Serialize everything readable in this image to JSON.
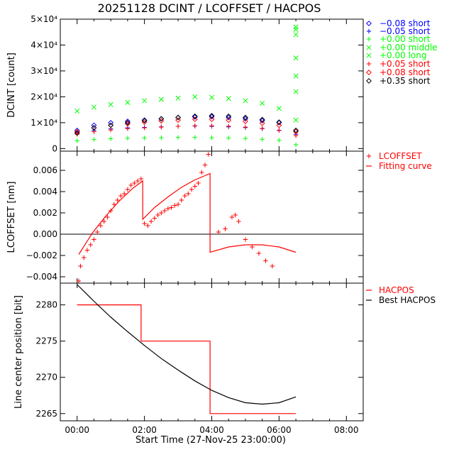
{
  "title": "20251128 DCINT / LCOFFSET / HACPOS",
  "xlabel": "Start Time (27-Nov-25 23:00:00)",
  "x_ticks": [
    "00:00",
    "02:00",
    "04:00",
    "06:00",
    "08:00"
  ],
  "colors": {
    "blue": "#0000ff",
    "green": "#00ff00",
    "red": "#ff0000",
    "black": "#000000"
  },
  "chart_data": [
    {
      "type": "scatter",
      "panel": "DCINT",
      "ylabel": "DCINT [count]",
      "xlim": [
        -0.5,
        8.5
      ],
      "ylim": [
        -1000,
        50000
      ],
      "y_ticks": [
        {
          "value": 0,
          "label": "0"
        },
        {
          "value": 10000,
          "label": "1×10⁴"
        },
        {
          "value": 20000,
          "label": "2×10⁴"
        },
        {
          "value": 30000,
          "label": "3×10⁴"
        },
        {
          "value": 40000,
          "label": "4×10⁴"
        },
        {
          "value": 50000,
          "label": "5×10⁴"
        }
      ],
      "legend_position": "right",
      "series": [
        {
          "name": "−0.08 short",
          "symbol": "diamond",
          "color": "#0000ff",
          "x": [
            0.0,
            0.5,
            1.0,
            1.5,
            2.0,
            2.5,
            3.0,
            3.5,
            4.0,
            4.5,
            5.0,
            5.5,
            6.0,
            6.5
          ],
          "y": [
            7000,
            9000,
            10000,
            10500,
            11000,
            11500,
            12000,
            12200,
            12300,
            12000,
            11500,
            10800,
            10000,
            7000
          ]
        },
        {
          "name": "−0.05 short",
          "symbol": "plus",
          "color": "#0000ff",
          "x": [
            0.0,
            0.5,
            1.0,
            1.5,
            2.0,
            2.5,
            3.0,
            3.5,
            4.0,
            4.5,
            5.0,
            5.5,
            6.0,
            6.5
          ],
          "y": [
            6000,
            7000,
            7600,
            8000,
            8200,
            8400,
            8600,
            8700,
            8600,
            8400,
            8100,
            7700,
            7100,
            5500
          ]
        },
        {
          "name": "+0.00 short",
          "symbol": "plus",
          "color": "#00ff00",
          "x": [
            0.0,
            0.5,
            1.0,
            1.5,
            2.0,
            2.5,
            3.0,
            3.5,
            4.0,
            4.5,
            5.0,
            5.5,
            6.0,
            6.5
          ],
          "y": [
            3000,
            3500,
            3800,
            4000,
            4100,
            4200,
            4300,
            4300,
            4200,
            4100,
            3900,
            3600,
            3200,
            1500
          ]
        },
        {
          "name": "+0.00 middle",
          "symbol": "x",
          "color": "#00ff00",
          "x": [
            6.5,
            6.5,
            6.5,
            6.5,
            6.5,
            6.5
          ],
          "y": [
            22000,
            28000,
            35000,
            44000,
            46000,
            47000
          ]
        },
        {
          "name": "+0.00 long",
          "symbol": "x",
          "color": "#00ff00",
          "x": [
            0.0,
            0.5,
            1.0,
            1.5,
            2.0,
            2.5,
            3.0,
            3.5,
            4.0,
            4.5,
            5.0,
            5.5,
            6.0,
            6.5
          ],
          "y": [
            14500,
            16000,
            17000,
            17800,
            18500,
            19000,
            19500,
            20000,
            19800,
            19300,
            18500,
            17500,
            15500,
            11000
          ]
        },
        {
          "name": "+0.05 short",
          "symbol": "plus",
          "color": "#ff0000",
          "x": [
            0.0,
            0.5,
            1.0,
            1.5,
            2.0,
            2.5,
            3.0,
            3.5,
            4.0,
            4.5,
            5.0,
            5.5,
            6.0,
            6.5
          ],
          "y": [
            5500,
            6500,
            7200,
            7700,
            8000,
            8300,
            8600,
            8800,
            8800,
            8600,
            8300,
            7800,
            7000,
            5000
          ]
        },
        {
          "name": "+0.08 short",
          "symbol": "diamond",
          "color": "#ff0000",
          "x": [
            0.0,
            0.5,
            1.0,
            1.5,
            2.0,
            2.5,
            3.0,
            3.5,
            4.0,
            4.5,
            5.0,
            5.5,
            6.0,
            6.5
          ],
          "y": [
            6500,
            8000,
            9000,
            9600,
            10200,
            10700,
            11000,
            11300,
            11300,
            11000,
            10500,
            9800,
            9000,
            6500
          ]
        },
        {
          "name": "+0.35 short",
          "symbol": "diamond",
          "color": "#000000",
          "x": [
            0.0,
            0.5,
            1.0,
            1.5,
            2.0,
            2.5,
            3.0,
            3.5,
            4.0,
            4.5,
            5.0,
            5.5,
            6.0,
            6.5
          ],
          "y": [
            6000,
            8000,
            9000,
            10000,
            10800,
            11500,
            12000,
            12500,
            12700,
            12500,
            12000,
            11200,
            10200,
            7000
          ]
        }
      ]
    },
    {
      "type": "scatter",
      "panel": "LCOFFSET",
      "ylabel": "LCOFFSET [nm]",
      "xlim": [
        -0.5,
        8.5
      ],
      "ylim": [
        -0.0046,
        0.0078
      ],
      "y_ticks": [
        {
          "value": -0.004,
          "label": "−0.004"
        },
        {
          "value": -0.002,
          "label": "−0.002"
        },
        {
          "value": 0.0,
          "label": "0.000"
        },
        {
          "value": 0.002,
          "label": "0.002"
        },
        {
          "value": 0.004,
          "label": "0.004"
        },
        {
          "value": 0.006,
          "label": "0.006"
        }
      ],
      "zero_line": true,
      "legend_position": "right",
      "series": [
        {
          "name": "LCOFFSET",
          "symbol": "plus",
          "color": "#ff0000",
          "x": [
            0.05,
            0.1,
            0.2,
            0.3,
            0.4,
            0.5,
            0.6,
            0.7,
            0.8,
            0.9,
            1.0,
            1.1,
            1.2,
            1.3,
            1.4,
            1.5,
            1.6,
            1.7,
            1.8,
            1.9,
            2.0,
            2.1,
            2.2,
            2.3,
            2.4,
            2.5,
            2.6,
            2.7,
            2.8,
            2.9,
            3.0,
            3.1,
            3.2,
            3.3,
            3.4,
            3.5,
            3.6,
            3.7,
            3.8,
            3.9,
            4.2,
            4.4,
            4.6,
            4.7,
            4.8,
            5.0,
            5.2,
            5.4,
            5.6,
            5.8
          ],
          "y": [
            -0.0044,
            -0.003,
            -0.0022,
            -0.0015,
            -0.001,
            -0.0005,
            0.0002,
            0.0008,
            0.0012,
            0.0016,
            0.0022,
            0.0028,
            0.0032,
            0.0036,
            0.0038,
            0.0042,
            0.0046,
            0.0048,
            0.005,
            0.0052,
            0.001,
            0.0008,
            0.0012,
            0.0015,
            0.0018,
            0.002,
            0.0022,
            0.0024,
            0.0025,
            0.0027,
            0.0028,
            0.0032,
            0.0036,
            0.0038,
            0.0042,
            0.0045,
            0.0048,
            0.0058,
            0.0065,
            0.0075,
            0.0002,
            0.0005,
            0.0016,
            0.0018,
            0.0012,
            -0.0005,
            -0.0012,
            -0.0018,
            -0.0025,
            -0.003
          ]
        },
        {
          "name": "Fitting curve",
          "symbol": "line",
          "color": "#ff0000",
          "x": [
            0.05,
            0.45,
            0.85,
            1.25,
            1.65,
            1.95,
            1.95,
            2.3,
            2.7,
            3.1,
            3.5,
            3.95,
            3.95,
            4.5,
            5.0,
            5.5,
            6.0,
            6.5
          ],
          "y": [
            -0.0019,
            0.0001,
            0.0017,
            0.0031,
            0.0043,
            0.005,
            0.0014,
            0.0025,
            0.0035,
            0.0044,
            0.0051,
            0.0057,
            -0.0017,
            -0.0012,
            -0.001,
            -0.001,
            -0.0012,
            -0.0017
          ]
        }
      ]
    },
    {
      "type": "line",
      "panel": "HACPOS",
      "ylabel": "Line center position [bit]",
      "xlim": [
        -0.5,
        8.5
      ],
      "ylim": [
        2264,
        2283
      ],
      "y_ticks": [
        {
          "value": 2265,
          "label": "2265"
        },
        {
          "value": 2270,
          "label": "2270"
        },
        {
          "value": 2275,
          "label": "2275"
        },
        {
          "value": 2280,
          "label": "2280"
        }
      ],
      "legend_position": "right",
      "series": [
        {
          "name": "HACPOS",
          "color": "#ff0000",
          "x": [
            0.0,
            1.9,
            1.9,
            3.95,
            3.95,
            6.5
          ],
          "y": [
            2280,
            2280,
            2275,
            2275,
            2265,
            2265
          ]
        },
        {
          "name": "Best HACPOS",
          "color": "#000000",
          "x": [
            0.0,
            0.5,
            1.0,
            1.5,
            2.0,
            2.5,
            3.0,
            3.5,
            4.0,
            4.5,
            5.0,
            5.5,
            6.0,
            6.5
          ],
          "y": [
            2282.8,
            2280.5,
            2278.3,
            2276.3,
            2274.4,
            2272.6,
            2271.0,
            2269.5,
            2268.2,
            2267.2,
            2266.5,
            2266.3,
            2266.5,
            2267.3
          ]
        }
      ]
    }
  ]
}
